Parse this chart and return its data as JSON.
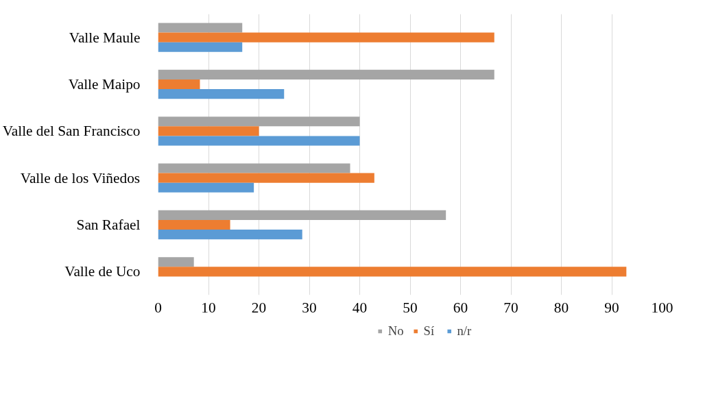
{
  "chart_data": {
    "type": "bar",
    "orientation": "horizontal",
    "categories": [
      "Valle Maule",
      "Valle Maipo",
      "Valle del San Francisco",
      "Valle de los Viñedos",
      "San Rafael",
      "Valle de Uco"
    ],
    "series": [
      {
        "name": "No",
        "color": "#a5a5a5",
        "values": [
          16.7,
          66.7,
          40,
          38.1,
          57.1,
          7.1
        ]
      },
      {
        "name": "Sí",
        "color": "#ed7d31",
        "values": [
          66.7,
          8.3,
          20,
          42.9,
          14.3,
          92.9
        ]
      },
      {
        "name": "n/r",
        "color": "#5b9bd5",
        "values": [
          16.7,
          25,
          40,
          19,
          28.6,
          0
        ]
      }
    ],
    "xlim": [
      0,
      100
    ],
    "xticks": [
      0,
      10,
      20,
      30,
      40,
      50,
      60,
      70,
      80,
      90,
      100
    ],
    "grid": "x",
    "legend": "bottom"
  }
}
